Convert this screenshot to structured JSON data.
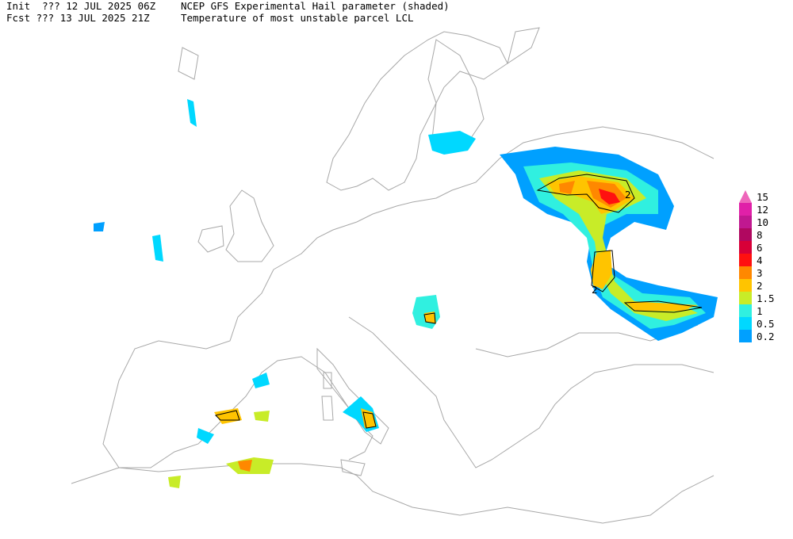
{
  "header": {
    "init_label": "Init  ??? 12 JUL 2025 06Z",
    "init_title": "NCEP GFS Experimental Hail parameter (shaded)",
    "fcst_label": "Fcst ??? 13 JUL 2025 21Z",
    "fcst_title": "Temperature of most unstable parcel LCL"
  },
  "legend": {
    "items": [
      {
        "label": "15",
        "color": "#ee66bb"
      },
      {
        "label": "12",
        "color": "#e020a8"
      },
      {
        "label": "10",
        "color": "#c01890"
      },
      {
        "label": "8",
        "color": "#b00860"
      },
      {
        "label": "6",
        "color": "#d80038"
      },
      {
        "label": "4",
        "color": "#ff1010"
      },
      {
        "label": "3",
        "color": "#ff8800"
      },
      {
        "label": "2",
        "color": "#ffc400"
      },
      {
        "label": "1.5",
        "color": "#c8ec28"
      },
      {
        "label": "1",
        "color": "#30f0e0"
      },
      {
        "label": "0.5",
        "color": "#00d8ff"
      },
      {
        "label": "0.2",
        "color": "#00a0ff"
      }
    ]
  },
  "contour_labels": [
    "2",
    "2"
  ]
}
